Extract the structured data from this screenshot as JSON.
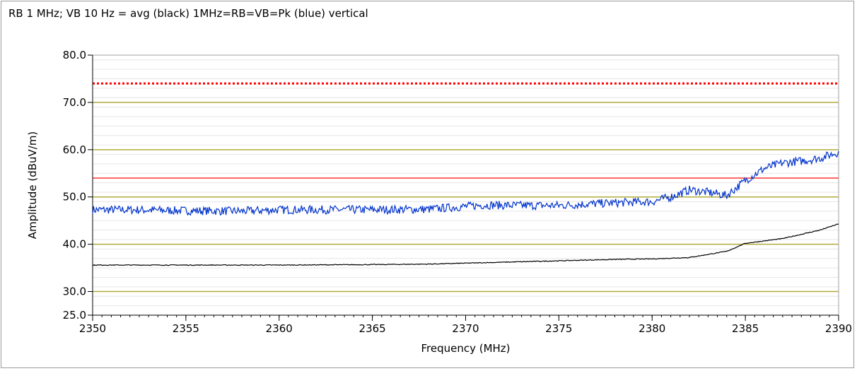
{
  "chart_data": {
    "type": "line",
    "title": "RB 1 MHz; VB 10 Hz = avg (black) 1MHz=RB=VB=Pk (blue) vertical",
    "xlabel": "Frequency (MHz)",
    "ylabel": "Amplitude (dBuV/m)",
    "xlim": [
      2350,
      2390
    ],
    "ylim": [
      25,
      80
    ],
    "x_ticks": [
      2350,
      2355,
      2360,
      2365,
      2370,
      2375,
      2380,
      2385,
      2390
    ],
    "x_tick_labels": [
      "2350",
      "2355",
      "2360",
      "2365",
      "2370",
      "2375",
      "2380",
      "2385",
      "2390"
    ],
    "y_ticks": [
      25,
      30,
      40,
      50,
      60,
      70,
      80
    ],
    "y_tick_labels": [
      "25.0",
      "30.0",
      "40.0",
      "50.0",
      "60.0",
      "70.0",
      "80.0"
    ],
    "grid": true,
    "reference_lines": [
      {
        "y": 74,
        "style": "dotted",
        "color": "#ff0000"
      },
      {
        "y": 54,
        "style": "solid",
        "color": "#ff3333"
      }
    ],
    "series": [
      {
        "color": "#0033cc",
        "noise": 0.9,
        "x": [
          2350,
          2352,
          2355,
          2358,
          2360,
          2363,
          2365,
          2368,
          2370,
          2371,
          2373,
          2375,
          2377,
          2379,
          2380,
          2381,
          2382,
          2383,
          2384,
          2385,
          2386,
          2387,
          2388,
          2389,
          2390
        ],
        "values": [
          47.3,
          47.3,
          47.1,
          47.0,
          47.3,
          47.3,
          47.3,
          47.4,
          48.0,
          48.3,
          48.2,
          48.2,
          48.6,
          48.9,
          49.0,
          50.0,
          51.5,
          51.0,
          50.3,
          53.5,
          56.0,
          57.2,
          57.6,
          58.2,
          59.5
        ]
      },
      {
        "color": "#000000",
        "noise": 0.08,
        "x": [
          2350,
          2355,
          2360,
          2365,
          2368,
          2370,
          2372,
          2375,
          2378,
          2380,
          2382,
          2384,
          2385,
          2387,
          2389,
          2390
        ],
        "values": [
          35.6,
          35.6,
          35.6,
          35.7,
          35.8,
          36.0,
          36.2,
          36.5,
          36.8,
          36.9,
          37.2,
          38.5,
          40.2,
          41.2,
          43.0,
          44.3
        ]
      }
    ]
  }
}
